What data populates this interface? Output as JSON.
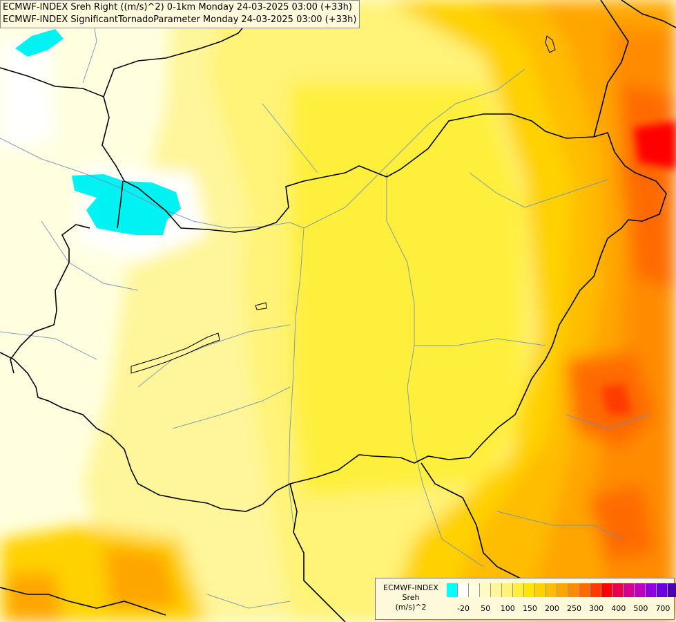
{
  "titles": [
    "ECMWF-INDEX Sreh Right ((m/s)^2) 0-1km Monday 24-03-2025 03:00 (+33h)",
    "ECMWF-INDEX SignificantTornadoParameter Monday 24-03-2025 03:00 (+33h)"
  ],
  "legend": {
    "title_lines": [
      "ECMWF-INDEX",
      "Sreh",
      "(m/s)^2"
    ],
    "colors": [
      "#00ffff",
      "#ffffff",
      "#ffffe0",
      "#fffac0",
      "#fff59a",
      "#fff378",
      "#ffef3c",
      "#ffe600",
      "#ffd100",
      "#ffbc00",
      "#ffa500",
      "#ff8c00",
      "#ff6a00",
      "#ff3a00",
      "#ff0000",
      "#e8004a",
      "#d60090",
      "#c000c0",
      "#9000e0",
      "#6a00e0",
      "#4a00b0",
      "#000080"
    ],
    "ticks": [
      {
        "label": "-20",
        "index": 1
      },
      {
        "label": "50",
        "index": 3
      },
      {
        "label": "100",
        "index": 5
      },
      {
        "label": "150",
        "index": 7
      },
      {
        "label": "200",
        "index": 9
      },
      {
        "label": "250",
        "index": 11
      },
      {
        "label": "300",
        "index": 13
      },
      {
        "label": "400",
        "index": 15
      },
      {
        "label": "500",
        "index": 17
      },
      {
        "label": "700",
        "index": 19
      }
    ]
  }
}
